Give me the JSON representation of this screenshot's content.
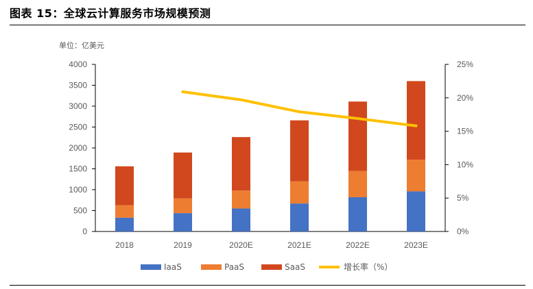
{
  "figure": {
    "title": "图表 15：全球云计算服务市场规模预测"
  },
  "chart_data": {
    "type": "bar",
    "stacked": true,
    "unit_label": "单位：亿美元",
    "categories": [
      "2018",
      "2019",
      "2020E",
      "2021E",
      "2022E",
      "2023E"
    ],
    "series": [
      {
        "name": "IaaS",
        "color": "#4472C4",
        "values": [
          330,
          440,
          550,
          670,
          820,
          960
        ]
      },
      {
        "name": "PaaS",
        "color": "#ED7D31",
        "values": [
          300,
          350,
          430,
          530,
          630,
          760
        ]
      },
      {
        "name": "SaaS",
        "color": "#D1481E",
        "values": [
          930,
          1100,
          1280,
          1460,
          1660,
          1880
        ]
      }
    ],
    "line": {
      "name": "增长率（%）",
      "color": "#FFC000",
      "values": [
        null,
        20.9,
        19.7,
        17.9,
        16.9,
        15.8
      ]
    },
    "ylim": [
      0,
      4000
    ],
    "yticks": [
      "0",
      "500",
      "1000",
      "1500",
      "2000",
      "2500",
      "3000",
      "3500",
      "4000"
    ],
    "y2lim": [
      0,
      25
    ],
    "y2ticks": [
      "0%",
      "5%",
      "10%",
      "15%",
      "20%",
      "25%"
    ],
    "legend": "bottom",
    "grid": false
  }
}
